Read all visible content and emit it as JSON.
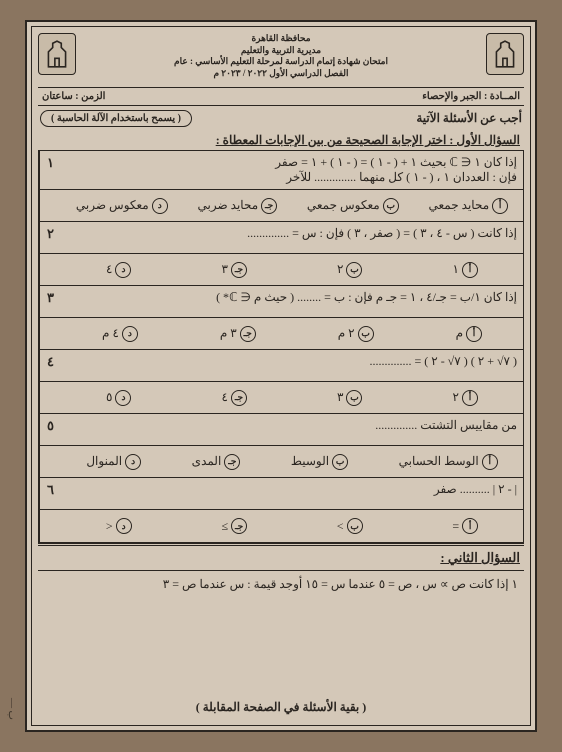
{
  "header": {
    "line1": "محافظة القاهرة",
    "line2": "مديرية التربية والتعليم",
    "line3": "امتحان شهادة إتمام الدراسة لمرحلة التعليم الأساسي : عام",
    "line4": "الفصل الدراسي الأول ٢٠٢٢ / ٢٠٢٣ م"
  },
  "subheader": {
    "subject": "المــادة : الجبر والإحصاء",
    "time": "الزمن : ساعتان"
  },
  "instruction": "أجب عن الأسئلة الآتية",
  "calc_note": "( يسمح باستخدام الآلة الحاسبة )",
  "q1_title": "السؤال الأول : اختر الإجابة الصحيحة من بين الإجابات المعطاة :",
  "questions": [
    {
      "num": "١",
      "text": "إذا كان ١ ∈ ℂ بحيث ١ + ( - ١ ) = ( - ١ ) + ١ = صفر",
      "text2": "فإن : العددان ١ ، ( - ١ ) كل منهما .............. للآخر",
      "opts": [
        "محايد جمعي",
        "معكوس جمعي",
        "محايد ضربي",
        "معكوس ضربي"
      ]
    },
    {
      "num": "٢",
      "text": "إذا كانت ( س - ٤ ، ٣ ) = ( صفر ، ٣ ) فإن : س = ..............",
      "opts": [
        "١",
        "٢",
        "٣",
        "٤"
      ]
    },
    {
      "num": "٣",
      "text": "إذا كان  ١/ب = جـ/٤ ، ١ = جـ م  فإن : ب = ........ ( حيث م ∈ ℂ* )",
      "opts": [
        "م",
        "٢ م",
        "٣ م",
        "٤ م"
      ]
    },
    {
      "num": "٤",
      "text": "( ٧√ + ٢ ) ( ٧√ - ٢ ) = ..............",
      "opts": [
        "٢",
        "٣",
        "٤",
        "٥"
      ]
    },
    {
      "num": "٥",
      "text": "من مقاييس التشتت ..............",
      "opts": [
        "الوسط الحسابي",
        "الوسيط",
        "المدى",
        "المنوال"
      ]
    },
    {
      "num": "٦",
      "text": "| - ٢ | .......... صفر",
      "opts": [
        "=",
        ">",
        "≥",
        "<"
      ]
    }
  ],
  "opt_letters": [
    "أ",
    "ب",
    "جـ",
    "د"
  ],
  "q2_title": "السؤال الثاني :",
  "q2_text": "١ إذا كانت ص ∝ س ، ص = ٥ عندما س = ١٥ أوجد قيمة : س عندما ص = ٣",
  "footer": "( بقية الأسئلة في الصفحة المقابلة )",
  "colors": {
    "bg": "#8a7560",
    "paper": "#d4c8b8",
    "ink": "#2a2520"
  },
  "left_marks": "ب —"
}
